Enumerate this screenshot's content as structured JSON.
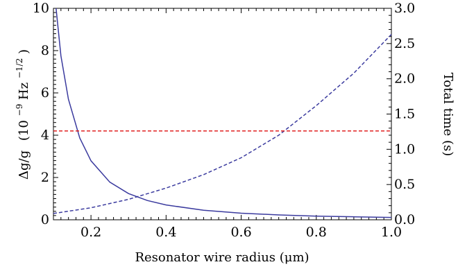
{
  "chart_data": {
    "type": "line",
    "title": "",
    "xlabel": "Resonator wire radius (μm)",
    "ylabel_left": {
      "main": "Δg/g",
      "unit_prefix": "(10",
      "unit_exp1": "−9",
      "unit_mid": " Hz",
      "unit_exp2": "−1/2",
      "unit_suffix": ")"
    },
    "ylabel_right": "Total time (s)",
    "xlim": [
      0.1,
      1.0
    ],
    "ylim_left": [
      0,
      10
    ],
    "ylim_right": [
      0,
      3.0
    ],
    "x_ticks": [
      "0.2",
      "0.4",
      "0.6",
      "0.8",
      "1.0"
    ],
    "y_left_ticks": [
      "0",
      "2",
      "4",
      "6",
      "8",
      "10"
    ],
    "y_right_ticks": [
      "0.0",
      "0.5",
      "1.0",
      "1.5",
      "2.0",
      "2.5",
      "3.0"
    ],
    "grid": false,
    "legend": "none",
    "series": [
      {
        "axis": "left",
        "style": "solid",
        "color": "#3a3a9e",
        "x": [
          0.107,
          0.12,
          0.14,
          0.17,
          0.2,
          0.25,
          0.3,
          0.35,
          0.4,
          0.5,
          0.6,
          0.7,
          0.8,
          0.9,
          1.0
        ],
        "y": [
          10.0,
          7.75,
          5.7,
          3.87,
          2.79,
          1.78,
          1.24,
          0.91,
          0.7,
          0.45,
          0.31,
          0.23,
          0.17,
          0.14,
          0.11
        ]
      },
      {
        "axis": "right",
        "style": "dashed",
        "color": "#3a3a9e",
        "x": [
          0.1,
          0.2,
          0.3,
          0.4,
          0.5,
          0.6,
          0.7,
          0.8,
          0.9,
          1.0
        ],
        "y": [
          0.09,
          0.17,
          0.29,
          0.45,
          0.64,
          0.88,
          1.2,
          1.62,
          2.08,
          2.63
        ]
      },
      {
        "axis": "left",
        "style": "dashed",
        "color": "#e02020",
        "x": [
          0.1,
          1.0
        ],
        "y": [
          4.2,
          4.2
        ]
      }
    ]
  }
}
